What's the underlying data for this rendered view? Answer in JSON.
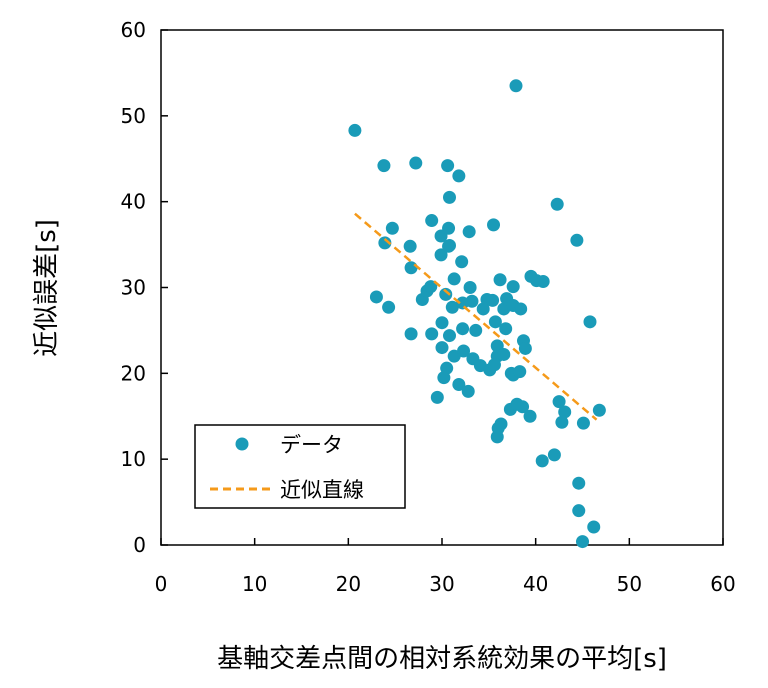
{
  "chart_data": {
    "type": "scatter",
    "xlabel": "基軸交差点間の相対系統効果の平均[s]",
    "ylabel": "近似誤差[s]",
    "xlim": [
      0,
      60
    ],
    "ylim": [
      0,
      60
    ],
    "xticks": [
      0,
      10,
      20,
      30,
      40,
      50,
      60
    ],
    "yticks": [
      0,
      10,
      20,
      30,
      40,
      50,
      60
    ],
    "grid": false,
    "legend": "bottom-left",
    "series": [
      {
        "name": "データ",
        "color": "#1a9bb8",
        "marker": "circle",
        "points": [
          [
            20.7,
            48.3
          ],
          [
            23.0,
            28.9
          ],
          [
            23.8,
            44.2
          ],
          [
            23.9,
            35.2
          ],
          [
            24.3,
            27.7
          ],
          [
            24.7,
            36.9
          ],
          [
            26.6,
            34.8
          ],
          [
            26.7,
            32.3
          ],
          [
            26.7,
            24.6
          ],
          [
            27.2,
            44.5
          ],
          [
            27.9,
            28.6
          ],
          [
            28.4,
            29.6
          ],
          [
            28.8,
            30.1
          ],
          [
            28.9,
            37.8
          ],
          [
            28.9,
            24.6
          ],
          [
            29.5,
            17.2
          ],
          [
            29.9,
            36.0
          ],
          [
            29.9,
            33.8
          ],
          [
            30.0,
            25.9
          ],
          [
            30.0,
            23.0
          ],
          [
            30.2,
            19.5
          ],
          [
            30.6,
            44.2
          ],
          [
            30.7,
            36.9
          ],
          [
            30.7,
            34.8
          ],
          [
            30.8,
            40.5
          ],
          [
            30.8,
            34.9
          ],
          [
            30.8,
            24.4
          ],
          [
            30.4,
            29.2
          ],
          [
            30.5,
            20.6
          ],
          [
            31.1,
            27.7
          ],
          [
            31.3,
            22.0
          ],
          [
            31.3,
            31.0
          ],
          [
            31.8,
            43.0
          ],
          [
            32.1,
            33.0
          ],
          [
            32.2,
            28.2
          ],
          [
            32.2,
            25.2
          ],
          [
            32.3,
            22.6
          ],
          [
            31.8,
            18.7
          ],
          [
            32.8,
            17.9
          ],
          [
            32.9,
            36.5
          ],
          [
            33.0,
            30.0
          ],
          [
            33.2,
            28.4
          ],
          [
            33.3,
            21.7
          ],
          [
            33.6,
            25.0
          ],
          [
            34.1,
            20.9
          ],
          [
            34.4,
            27.5
          ],
          [
            34.8,
            28.6
          ],
          [
            35.1,
            20.4
          ],
          [
            35.4,
            28.5
          ],
          [
            35.5,
            37.3
          ],
          [
            35.7,
            26.0
          ],
          [
            35.9,
            23.2
          ],
          [
            35.9,
            22.0
          ],
          [
            35.6,
            21.0
          ],
          [
            35.9,
            12.6
          ],
          [
            36.0,
            13.6
          ],
          [
            36.2,
            30.9
          ],
          [
            36.3,
            14.1
          ],
          [
            36.6,
            27.5
          ],
          [
            36.6,
            22.2
          ],
          [
            36.8,
            25.2
          ],
          [
            36.9,
            28.7
          ],
          [
            37.3,
            15.8
          ],
          [
            37.4,
            20.0
          ],
          [
            37.6,
            27.9
          ],
          [
            37.6,
            30.1
          ],
          [
            37.6,
            19.8
          ],
          [
            37.9,
            53.5
          ],
          [
            38.0,
            16.4
          ],
          [
            38.3,
            20.2
          ],
          [
            38.4,
            27.5
          ],
          [
            38.6,
            16.1
          ],
          [
            38.7,
            23.8
          ],
          [
            38.9,
            22.9
          ],
          [
            39.4,
            15.0
          ],
          [
            39.5,
            31.3
          ],
          [
            40.1,
            30.8
          ],
          [
            40.7,
            9.8
          ],
          [
            40.8,
            30.7
          ],
          [
            42.0,
            10.5
          ],
          [
            42.3,
            39.7
          ],
          [
            42.5,
            16.7
          ],
          [
            42.8,
            14.3
          ],
          [
            43.1,
            15.5
          ],
          [
            44.4,
            35.5
          ],
          [
            44.6,
            7.2
          ],
          [
            44.6,
            4.0
          ],
          [
            45.0,
            0.4
          ],
          [
            45.1,
            14.2
          ],
          [
            45.8,
            26.0
          ],
          [
            46.2,
            2.1
          ],
          [
            46.8,
            15.7
          ]
        ]
      },
      {
        "name": "近似直線",
        "color": "#f59a1a",
        "style": "dashed",
        "points": [
          [
            20.7,
            38.6
          ],
          [
            46.5,
            14.6
          ]
        ]
      }
    ]
  }
}
